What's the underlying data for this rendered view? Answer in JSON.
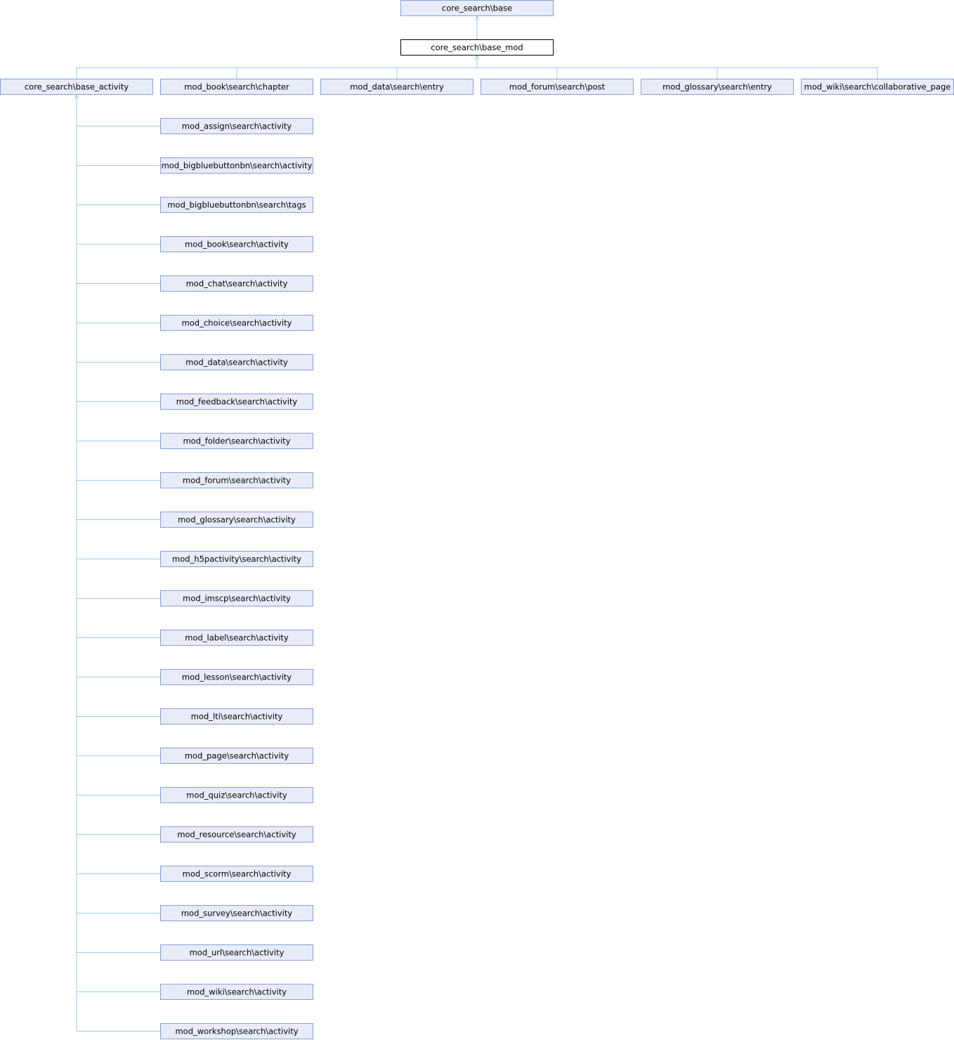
{
  "diagram": {
    "current": "core_search\\base_mod",
    "parent": "core_search\\base",
    "direct_children": [
      "core_search\\base_activity",
      "mod_book\\search\\chapter",
      "mod_data\\search\\entry",
      "mod_forum\\search\\post",
      "mod_glossary\\search\\entry",
      "mod_wiki\\search\\collaborative_page"
    ],
    "activity_children": [
      "mod_assign\\search\\activity",
      "mod_bigbluebuttonbn\\search\\activity",
      "mod_bigbluebuttonbn\\search\\tags",
      "mod_book\\search\\activity",
      "mod_chat\\search\\activity",
      "mod_choice\\search\\activity",
      "mod_data\\search\\activity",
      "mod_feedback\\search\\activity",
      "mod_folder\\search\\activity",
      "mod_forum\\search\\activity",
      "mod_glossary\\search\\activity",
      "mod_h5pactivity\\search\\activity",
      "mod_imscp\\search\\activity",
      "mod_label\\search\\activity",
      "mod_lesson\\search\\activity",
      "mod_lti\\search\\activity",
      "mod_page\\search\\activity",
      "mod_quiz\\search\\activity",
      "mod_resource\\search\\activity",
      "mod_scorm\\search\\activity",
      "mod_survey\\search\\activity",
      "mod_url\\search\\activity",
      "mod_wiki\\search\\activity",
      "mod_workshop\\search\\activity"
    ],
    "colors": {
      "node_fill": "#e8ecf8",
      "node_border": "#8a9fd6",
      "edge": "#9ccbe6",
      "current_border": "#000000"
    }
  }
}
